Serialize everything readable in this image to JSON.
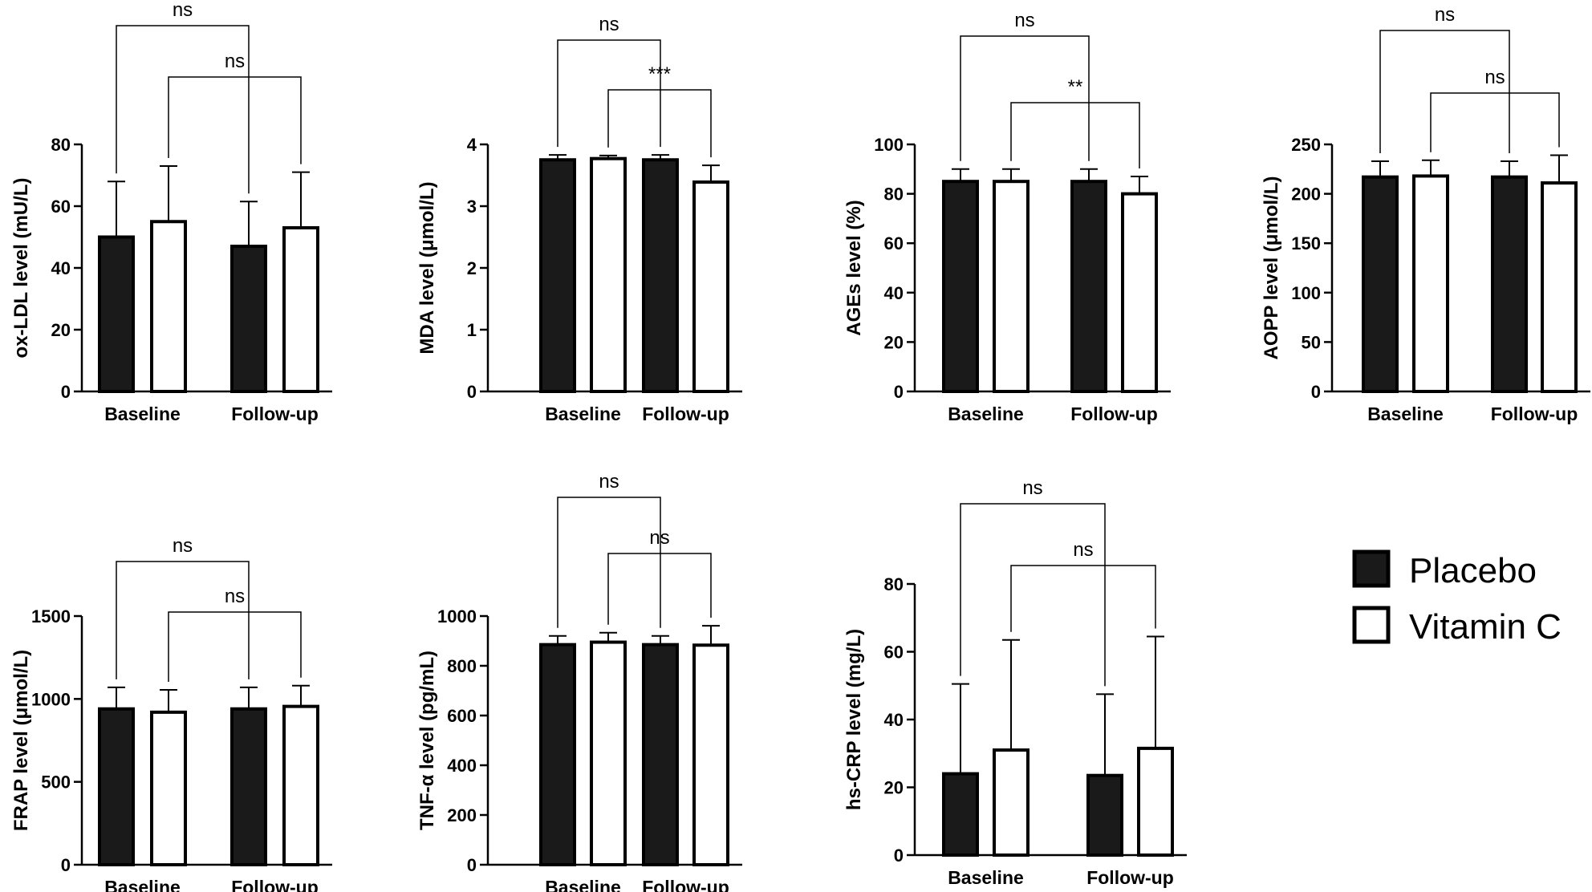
{
  "colors": {
    "placebo": "#1a1a1a",
    "vitamin_c": "#ffffff",
    "stroke": "#000000"
  },
  "legend": [
    {
      "label": "Placebo",
      "fill": "#1a1a1a"
    },
    {
      "label": "Vitamin C",
      "fill": "#ffffff"
    }
  ],
  "chart_data": [
    {
      "type": "bar",
      "categories": [
        "Baseline",
        "Follow-up"
      ],
      "ylabel": "ox-LDL level (mU/L)",
      "ylim": [
        0,
        80
      ],
      "yticks": [
        0,
        20,
        40,
        60,
        80
      ],
      "series": [
        {
          "name": "Placebo",
          "values": [
            50,
            47
          ],
          "errors": [
            18,
            14.5
          ]
        },
        {
          "name": "Vitamin C",
          "values": [
            55,
            53
          ],
          "errors": [
            18,
            18
          ]
        }
      ],
      "annotations": [
        "ns",
        "ns"
      ]
    },
    {
      "type": "bar",
      "categories": [
        "Baseline",
        "Follow-up"
      ],
      "ylabel": "MDA level (μmol/L)",
      "ylim": [
        0,
        4
      ],
      "yticks": [
        0,
        1,
        2,
        3,
        4
      ],
      "series": [
        {
          "name": "Placebo",
          "values": [
            3.75,
            3.75
          ],
          "errors": [
            0.08,
            0.08
          ]
        },
        {
          "name": "Vitamin C",
          "values": [
            3.77,
            3.39
          ],
          "errors": [
            0.05,
            0.27
          ]
        }
      ],
      "annotations": [
        "ns",
        "***"
      ]
    },
    {
      "type": "bar",
      "categories": [
        "Baseline",
        "Follow-up"
      ],
      "ylabel": "AGEs level (%)",
      "ylim": [
        0,
        100
      ],
      "yticks": [
        0,
        20,
        40,
        60,
        80,
        100
      ],
      "series": [
        {
          "name": "Placebo",
          "values": [
            85,
            85
          ],
          "errors": [
            5,
            5
          ]
        },
        {
          "name": "Vitamin C",
          "values": [
            85,
            80
          ],
          "errors": [
            5,
            7
          ]
        }
      ],
      "annotations": [
        "ns",
        "**"
      ]
    },
    {
      "type": "bar",
      "categories": [
        "Baseline",
        "Follow-up"
      ],
      "ylabel": "AOPP level (μmol/L)",
      "ylim": [
        0,
        250
      ],
      "yticks": [
        0,
        50,
        100,
        150,
        200,
        250
      ],
      "series": [
        {
          "name": "Placebo",
          "values": [
            217,
            217
          ],
          "errors": [
            16,
            16
          ]
        },
        {
          "name": "Vitamin C",
          "values": [
            218,
            211
          ],
          "errors": [
            16,
            28
          ]
        }
      ],
      "annotations": [
        "ns",
        "ns"
      ]
    },
    {
      "type": "bar",
      "categories": [
        "Baseline",
        "Follow-up"
      ],
      "ylabel": "FRAP level (μmol/L)",
      "ylim": [
        0,
        1500
      ],
      "yticks": [
        0,
        500,
        1000,
        1500
      ],
      "series": [
        {
          "name": "Placebo",
          "values": [
            940,
            940
          ],
          "errors": [
            130,
            130
          ]
        },
        {
          "name": "Vitamin C",
          "values": [
            920,
            955
          ],
          "errors": [
            135,
            125
          ]
        }
      ],
      "annotations": [
        "ns",
        "ns"
      ]
    },
    {
      "type": "bar",
      "categories": [
        "Baseline",
        "Follow-up"
      ],
      "ylabel": "TNF-α level (pg/mL)",
      "ylim": [
        0,
        1000
      ],
      "yticks": [
        0,
        200,
        400,
        600,
        800,
        1000
      ],
      "series": [
        {
          "name": "Placebo",
          "values": [
            885,
            885
          ],
          "errors": [
            35,
            35
          ]
        },
        {
          "name": "Vitamin C",
          "values": [
            895,
            883
          ],
          "errors": [
            38,
            78
          ]
        }
      ],
      "annotations": [
        "ns",
        "ns"
      ]
    },
    {
      "type": "bar",
      "categories": [
        "Baseline",
        "Follow-up"
      ],
      "ylabel": "hs-CRP level (mg/L)",
      "ylim": [
        0,
        80
      ],
      "yticks": [
        0,
        20,
        40,
        60,
        80
      ],
      "series": [
        {
          "name": "Placebo",
          "values": [
            24,
            23.5
          ],
          "errors": [
            26.5,
            24
          ]
        },
        {
          "name": "Vitamin C",
          "values": [
            31,
            31.5
          ],
          "errors": [
            32.5,
            33
          ]
        }
      ],
      "annotations": [
        "ns",
        "ns"
      ]
    }
  ]
}
